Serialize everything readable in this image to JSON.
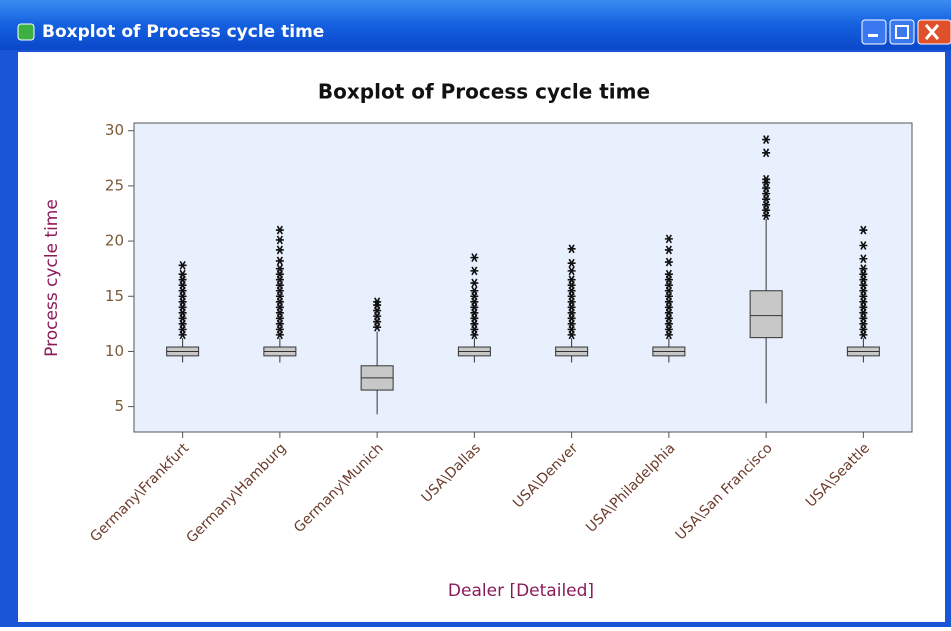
{
  "window": {
    "title": "Boxplot of Process cycle time"
  },
  "chart_data": {
    "type": "box",
    "title": "Boxplot of Process cycle time",
    "y_label": "Process cycle time",
    "x_label": "Dealer [Detailed]",
    "categories": [
      "Germany\\Frankfurt",
      "Germany\\Hamburg",
      "Germany\\Munich",
      "USA\\Dallas",
      "USA\\Denver",
      "USA\\Philadelphia",
      "USA\\San Francisco",
      "USA\\Seattle"
    ],
    "boxes": [
      {
        "low": 9.0,
        "q1": 9.6,
        "median": 10.0,
        "q3": 10.4,
        "high": 11.2,
        "outliers": [
          11.5,
          12,
          12.5,
          13,
          13.5,
          14,
          14.5,
          15,
          15.5,
          16,
          16.5,
          17,
          17.8
        ]
      },
      {
        "low": 9.0,
        "q1": 9.6,
        "median": 10.0,
        "q3": 10.4,
        "high": 11.2,
        "outliers": [
          11.5,
          12,
          12.5,
          13,
          13.5,
          14,
          14.5,
          15,
          15.5,
          16,
          16.5,
          17,
          17.5,
          18.2,
          19.2,
          20.1,
          21
        ]
      },
      {
        "low": 4.3,
        "q1": 6.5,
        "median": 7.6,
        "q3": 8.7,
        "high": 11.8,
        "outliers": [
          12.2,
          12.7,
          13.2,
          13.7,
          14.2,
          14.5
        ]
      },
      {
        "low": 9.0,
        "q1": 9.6,
        "median": 10.0,
        "q3": 10.4,
        "high": 11.2,
        "outliers": [
          11.5,
          12,
          12.5,
          13,
          13.5,
          14,
          14.5,
          15,
          15.5,
          16.2,
          17.3,
          18.5
        ]
      },
      {
        "low": 9.0,
        "q1": 9.6,
        "median": 10.0,
        "q3": 10.4,
        "high": 11.2,
        "outliers": [
          11.5,
          12,
          12.5,
          13,
          13.5,
          14,
          14.5,
          15,
          15.5,
          16,
          16.5,
          17.3,
          18,
          19.3
        ]
      },
      {
        "low": 9.0,
        "q1": 9.6,
        "median": 10.0,
        "q3": 10.4,
        "high": 11.2,
        "outliers": [
          11.5,
          12,
          12.5,
          13,
          13.5,
          14,
          14.5,
          15,
          15.5,
          16,
          16.5,
          17,
          18.1,
          19.2,
          20.2
        ]
      },
      {
        "low": 5.3,
        "q1": 11.25,
        "median": 13.25,
        "q3": 15.5,
        "high": 22.0,
        "outliers": [
          22.3,
          22.8,
          23.3,
          23.8,
          24.3,
          24.8,
          25.3,
          25.6,
          28,
          29.2
        ]
      },
      {
        "low": 9.0,
        "q1": 9.6,
        "median": 10.0,
        "q3": 10.4,
        "high": 11.2,
        "outliers": [
          11.5,
          12,
          12.5,
          13,
          13.5,
          14,
          14.5,
          15,
          15.5,
          16,
          16.5,
          17,
          17.5,
          18.4,
          19.6,
          21
        ]
      }
    ],
    "box_color": "#c8c8c8",
    "plot_background": "#e8f0fd",
    "ylim": [
      2.7,
      30.7
    ],
    "yticks": [
      5,
      10,
      15,
      20,
      25,
      30
    ]
  }
}
